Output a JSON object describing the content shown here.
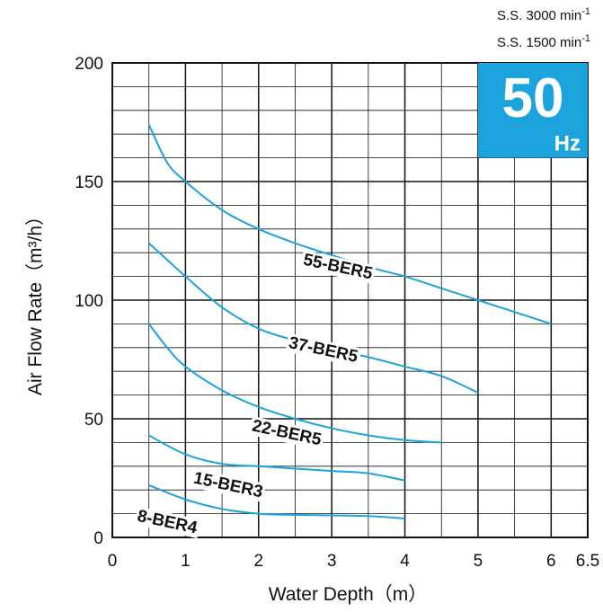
{
  "chart_data": {
    "type": "line",
    "xlabel": "Water Depth（m）",
    "ylabel": "Air Flow Rate（m³/h）",
    "xlim": [
      0,
      6.5
    ],
    "ylim": [
      0,
      200
    ],
    "x_ticks": [
      {
        "value": 0,
        "label": "0"
      },
      {
        "value": 1,
        "label": "1"
      },
      {
        "value": 2,
        "label": "2"
      },
      {
        "value": 3,
        "label": "3"
      },
      {
        "value": 4,
        "label": "4"
      },
      {
        "value": 5,
        "label": "5"
      },
      {
        "value": 6,
        "label": "6"
      },
      {
        "value": 6.5,
        "label": "6.5"
      }
    ],
    "y_ticks": [
      {
        "value": 0,
        "label": "0"
      },
      {
        "value": 50,
        "label": "50"
      },
      {
        "value": 100,
        "label": "100"
      },
      {
        "value": 150,
        "label": "150"
      },
      {
        "value": 200,
        "label": "200"
      }
    ],
    "grid": true,
    "badge": {
      "big": "50",
      "small": "Hz",
      "color": "#1ca3dc"
    },
    "notes": [
      {
        "text": "S.S. 3000 min",
        "sup": "-1"
      },
      {
        "text": "S.S. 1500 min",
        "sup": "-1"
      }
    ],
    "line_color": "#1ca3dc",
    "series": [
      {
        "name": "55-BER5",
        "label_at": [
          2.6,
          115
        ],
        "x": [
          0.5,
          0.75,
          1,
          1.5,
          2,
          2.5,
          3,
          3.5,
          4,
          4.5,
          5,
          5.5,
          6
        ],
        "y": [
          174,
          158,
          150,
          138,
          130,
          124,
          119,
          114,
          110,
          105,
          100,
          95,
          90
        ]
      },
      {
        "name": "37-BER5",
        "label_at": [
          2.4,
          80
        ],
        "x": [
          0.5,
          0.75,
          1,
          1.5,
          2,
          2.5,
          3,
          3.5,
          4,
          4.5,
          5
        ],
        "y": [
          124,
          117,
          110,
          97,
          88,
          83,
          79,
          76,
          72,
          68,
          61
        ]
      },
      {
        "name": "22-BER5",
        "label_at": [
          1.9,
          45
        ],
        "x": [
          0.5,
          0.75,
          1,
          1.5,
          2,
          2.5,
          3,
          3.5,
          4,
          4.5
        ],
        "y": [
          90,
          80,
          72,
          62,
          55,
          50,
          46,
          43,
          41,
          40
        ]
      },
      {
        "name": "15-BER3",
        "label_at": [
          1.1,
          23
        ],
        "x": [
          0.5,
          1,
          1.5,
          2,
          2.5,
          3,
          3.5,
          4
        ],
        "y": [
          43,
          35,
          31,
          30,
          29,
          28,
          27,
          24
        ]
      },
      {
        "name": "8-BER4",
        "label_at": [
          0.33,
          7
        ],
        "x": [
          0.5,
          1,
          1.5,
          2,
          2.5,
          3,
          3.5,
          4
        ],
        "y": [
          22,
          16,
          12,
          10,
          9.5,
          9.3,
          9,
          8
        ]
      }
    ]
  }
}
